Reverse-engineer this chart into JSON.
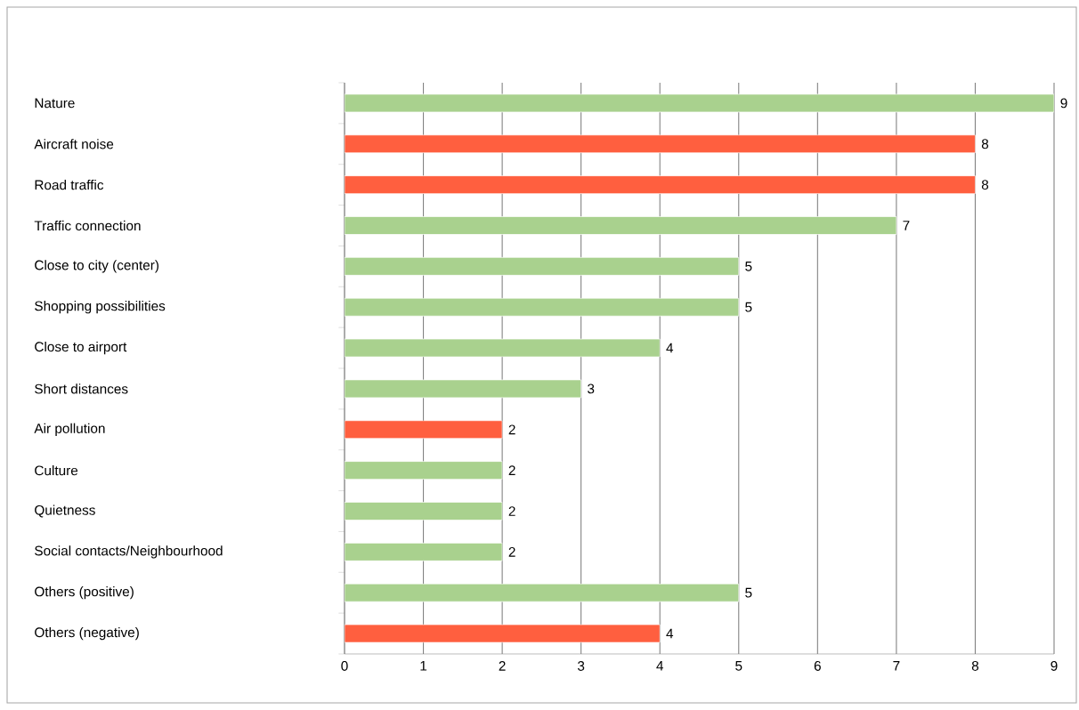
{
  "chart_data": {
    "type": "bar",
    "orientation": "horizontal",
    "categories": [
      "Nature",
      "Aircraft noise",
      "Road traffic",
      "Traffic connection",
      "Close to city (center)",
      "Shopping possibilities",
      "Close to airport",
      "Short distances",
      "Air pollution",
      "Culture",
      "Quietness",
      "Social contacts/Neighbourhood",
      "Others (positive)",
      "Others (negative)"
    ],
    "values": [
      9,
      8,
      8,
      7,
      5,
      5,
      4,
      3,
      2,
      2,
      2,
      2,
      5,
      4
    ],
    "colors": [
      "#a9d18e",
      "#ff5f3f",
      "#ff5f3f",
      "#a9d18e",
      "#a9d18e",
      "#a9d18e",
      "#a9d18e",
      "#a9d18e",
      "#ff5f3f",
      "#a9d18e",
      "#a9d18e",
      "#a9d18e",
      "#a9d18e",
      "#ff5f3f"
    ],
    "xlim": [
      0,
      9
    ],
    "xticks": [
      0,
      1,
      2,
      3,
      4,
      5,
      6,
      7,
      8,
      9
    ],
    "grid": "x",
    "data_labels": true
  }
}
